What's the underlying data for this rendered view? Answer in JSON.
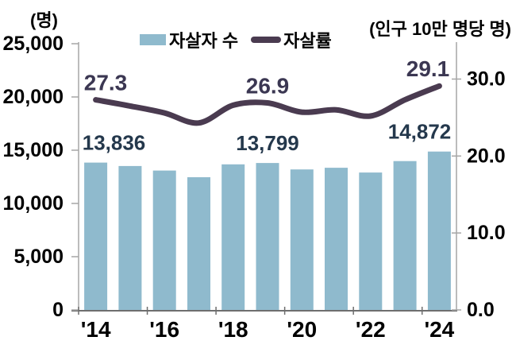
{
  "units": {
    "left": "(명)",
    "right": "(인구 10만 명당 명)"
  },
  "legend": {
    "bar_label": "자살자 수",
    "line_label": "자살률"
  },
  "colors": {
    "bar": "#8FBACD",
    "line": "#4A3B50",
    "bar_value_label": "#24384C",
    "rate_value_label": "#3B3752",
    "axis": "#A6A6A6",
    "baseline": "#6E6E6E",
    "tick_text": "#000000"
  },
  "chart_data": {
    "type": "bar+line",
    "title": "",
    "categories": [
      "2014",
      "2015",
      "2016",
      "2017",
      "2018",
      "2019",
      "2020",
      "2021",
      "2022",
      "2023",
      "2024"
    ],
    "x_tick_labels": [
      "'14",
      "'16",
      "'18",
      "'20",
      "'22",
      "'24"
    ],
    "x_tick_every": 2,
    "series": [
      {
        "name": "자살자 수",
        "type": "bar",
        "axis": "left",
        "values": [
          13836,
          13513,
          13092,
          12463,
          13670,
          13799,
          13195,
          13352,
          12906,
          13978,
          14872
        ]
      },
      {
        "name": "자살률",
        "type": "line",
        "axis": "right",
        "values": [
          27.3,
          26.5,
          25.6,
          24.3,
          26.6,
          26.9,
          25.7,
          26.0,
          25.2,
          27.3,
          29.1
        ]
      }
    ],
    "left_axis": {
      "unit": "(명)",
      "min": 0,
      "max": 25000,
      "tick_values": [
        0,
        5000,
        10000,
        15000,
        20000,
        25000
      ],
      "tick_labels": [
        "0",
        "5,000",
        "10,000",
        "15,000",
        "20,000",
        "25,000"
      ]
    },
    "right_axis": {
      "unit": "(인구 10만 명당 명)",
      "min": 0,
      "max": 34.8,
      "tick_values": [
        0,
        10,
        20,
        30
      ],
      "tick_labels": [
        "0.0",
        "10.0",
        "20.0",
        "30.0"
      ]
    },
    "annotations": {
      "bar": [
        {
          "index": 0,
          "text": "13,836"
        },
        {
          "index": 5,
          "text": "13,799"
        },
        {
          "index": 10,
          "text": "14,872"
        }
      ],
      "line": [
        {
          "index": 0,
          "text": "27.3"
        },
        {
          "index": 5,
          "text": "26.9"
        },
        {
          "index": 10,
          "text": "29.1"
        }
      ]
    },
    "legend_position": "top",
    "grid": false
  }
}
